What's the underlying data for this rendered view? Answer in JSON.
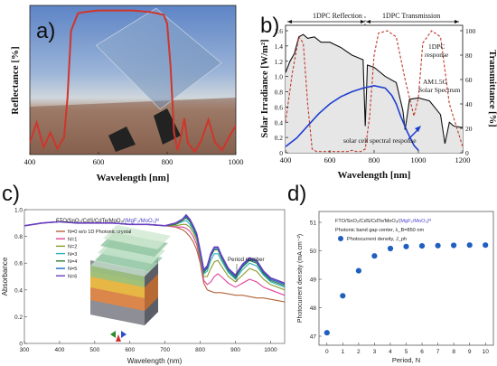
{
  "chart_data": [
    {
      "panel_label": "a)",
      "type": "line",
      "xlabel": "Wavelength [nm]",
      "ylabel": "Reflectance [%]",
      "xlim": [
        400,
        1000
      ],
      "ylim": [
        0,
        100
      ],
      "xticks": [
        "400",
        "600",
        "800",
        "1000"
      ],
      "yticks": [],
      "series": [
        {
          "color": "#d0352b",
          "x": [
            400,
            420,
            440,
            460,
            480,
            500,
            510,
            520,
            540,
            560,
            600,
            650,
            700,
            750,
            790,
            800,
            810,
            820,
            830,
            840,
            850,
            860,
            880,
            900,
            920,
            940,
            960,
            980,
            1000
          ],
          "y": [
            8,
            22,
            5,
            15,
            4,
            12,
            40,
            85,
            97,
            98,
            99,
            99,
            99,
            98,
            96,
            90,
            60,
            15,
            3,
            12,
            25,
            8,
            2,
            10,
            24,
            8,
            3,
            12,
            20
          ]
        }
      ],
      "background": "photo-of-glass-plate-over-field"
    },
    {
      "panel_label": "b)",
      "type": "line",
      "xlabel": "Wavelength [nm]",
      "ylabel": "Solar Irradiance [W/m²]",
      "y2label": "Transmittance [%]",
      "xlim": [
        400,
        1200
      ],
      "ylim": [
        0,
        1.6
      ],
      "y2lim": [
        0,
        100
      ],
      "xticks": [
        "400",
        "600",
        "800",
        "1000",
        "1200"
      ],
      "yticks": [
        "0",
        "0.2",
        "0.4",
        "0.6",
        "0.8",
        "1.0",
        "1.2",
        "1.4",
        "1.6"
      ],
      "y2ticks": [
        "0",
        "20",
        "40",
        "60",
        "80",
        "100"
      ],
      "annotations": {
        "reflection": "1DPC Reflection",
        "transmission": "1DPC Transmission",
        "dpc_response_1": "1DPC",
        "dpc_response_2": "response",
        "am15_1": "AM1.5G",
        "am15_2": "Solar Spectrum",
        "cell_response": "solar cell spectral response"
      },
      "series": [
        {
          "name_shown": "AM1.5G Solar Spectrum",
          "color": "#111111",
          "axis": "left",
          "x": [
            400,
            420,
            440,
            460,
            480,
            500,
            530,
            560,
            600,
            650,
            700,
            750,
            760,
            770,
            800,
            850,
            900,
            930,
            940,
            960,
            1000,
            1050,
            1100,
            1120,
            1140,
            1160,
            1200
          ],
          "y": [
            1.05,
            1.2,
            1.3,
            1.52,
            1.55,
            1.5,
            1.52,
            1.45,
            1.45,
            1.38,
            1.28,
            1.22,
            0.35,
            1.15,
            1.12,
            1.0,
            0.92,
            0.55,
            0.3,
            0.7,
            0.72,
            0.68,
            0.5,
            0.12,
            0.4,
            0.35,
            0.33
          ]
        },
        {
          "name_shown": "1DPC response",
          "color": "#c0392b",
          "style": "dashed",
          "axis": "right",
          "x": [
            400,
            430,
            460,
            480,
            500,
            520,
            540,
            560,
            580,
            600,
            620,
            640,
            660,
            680,
            700,
            720,
            740,
            760,
            780,
            800,
            820,
            860,
            900,
            940,
            980,
            1000,
            1020,
            1060,
            1100,
            1140,
            1200
          ],
          "y": [
            25,
            65,
            95,
            90,
            40,
            3,
            1,
            1,
            1,
            1,
            1,
            1,
            1,
            1,
            2,
            1,
            1,
            3,
            30,
            80,
            98,
            100,
            95,
            60,
            30,
            45,
            90,
            100,
            95,
            40,
            5
          ]
        },
        {
          "name_shown": "solar cell spectral response",
          "color": "#1f3ed0",
          "axis": "right",
          "x": [
            400,
            450,
            500,
            550,
            600,
            650,
            700,
            750,
            800,
            850,
            880,
            900,
            920,
            950,
            980,
            1000
          ],
          "y": [
            5,
            12,
            22,
            32,
            40,
            46,
            50,
            53,
            55,
            53,
            47,
            40,
            30,
            17,
            6,
            2
          ]
        }
      ]
    },
    {
      "panel_label": "c)",
      "type": "line",
      "xlabel": "Wavelength (nm)",
      "ylabel": "Absorbance",
      "xlim": [
        300,
        1040
      ],
      "ylim": [
        0,
        1.0
      ],
      "xticks": [
        "300",
        "400",
        "500",
        "600",
        "700",
        "800",
        "900",
        "1000"
      ],
      "yticks": [
        "0",
        "0.2",
        "0.4",
        "0.6",
        "0.8",
        "1.0"
      ],
      "structure_label_prefix": "FTO/SnO₂/CdS/CdTe/MoO₃/",
      "structure_label_pc": "(MgF₂/MoO₃)ᴺ",
      "annotation": "Period number",
      "x": [
        300,
        350,
        400,
        450,
        500,
        550,
        600,
        650,
        700,
        730,
        750,
        760,
        770,
        780,
        790,
        800,
        810,
        820,
        830,
        840,
        850,
        860,
        880,
        900,
        920,
        940,
        960,
        980,
        1000,
        1020,
        1040
      ],
      "series": [
        {
          "name": "N=0 w/o 1D Photonic crystal",
          "color": "#b5623a",
          "y": [
            0.88,
            0.9,
            0.91,
            0.9,
            0.9,
            0.9,
            0.89,
            0.89,
            0.88,
            0.87,
            0.85,
            0.83,
            0.8,
            0.76,
            0.7,
            0.6,
            0.45,
            0.4,
            0.39,
            0.38,
            0.38,
            0.38,
            0.37,
            0.36,
            0.36,
            0.35,
            0.34,
            0.34,
            0.33,
            0.32,
            0.31
          ]
        },
        {
          "name": "N=1",
          "color": "#e0409a",
          "y": [
            0.88,
            0.9,
            0.91,
            0.9,
            0.9,
            0.9,
            0.89,
            0.89,
            0.88,
            0.87,
            0.87,
            0.86,
            0.84,
            0.8,
            0.74,
            0.62,
            0.47,
            0.44,
            0.46,
            0.5,
            0.52,
            0.5,
            0.45,
            0.42,
            0.45,
            0.48,
            0.46,
            0.42,
            0.4,
            0.38,
            0.36
          ]
        },
        {
          "name": "N=2",
          "color": "#8a9a2a",
          "y": [
            0.88,
            0.9,
            0.91,
            0.9,
            0.9,
            0.9,
            0.89,
            0.89,
            0.88,
            0.88,
            0.89,
            0.89,
            0.87,
            0.83,
            0.77,
            0.64,
            0.5,
            0.5,
            0.56,
            0.61,
            0.62,
            0.58,
            0.5,
            0.46,
            0.51,
            0.56,
            0.54,
            0.48,
            0.44,
            0.42,
            0.4
          ]
        },
        {
          "name": "N=3",
          "color": "#2fb3c0",
          "y": [
            0.88,
            0.9,
            0.91,
            0.9,
            0.9,
            0.9,
            0.89,
            0.89,
            0.88,
            0.89,
            0.91,
            0.92,
            0.89,
            0.85,
            0.79,
            0.66,
            0.52,
            0.54,
            0.62,
            0.67,
            0.67,
            0.62,
            0.53,
            0.48,
            0.55,
            0.6,
            0.58,
            0.51,
            0.46,
            0.44,
            0.42
          ]
        },
        {
          "name": "N=4",
          "color": "#2e7d32",
          "y": [
            0.88,
            0.9,
            0.91,
            0.9,
            0.9,
            0.9,
            0.89,
            0.89,
            0.88,
            0.89,
            0.92,
            0.94,
            0.91,
            0.86,
            0.8,
            0.67,
            0.53,
            0.56,
            0.65,
            0.7,
            0.7,
            0.64,
            0.54,
            0.49,
            0.57,
            0.62,
            0.6,
            0.52,
            0.47,
            0.45,
            0.43
          ]
        },
        {
          "name": "N=5",
          "color": "#1565c0",
          "y": [
            0.88,
            0.9,
            0.91,
            0.9,
            0.9,
            0.9,
            0.89,
            0.89,
            0.88,
            0.9,
            0.93,
            0.95,
            0.92,
            0.87,
            0.81,
            0.68,
            0.54,
            0.57,
            0.66,
            0.71,
            0.71,
            0.65,
            0.55,
            0.5,
            0.58,
            0.63,
            0.61,
            0.53,
            0.48,
            0.46,
            0.44
          ]
        },
        {
          "name": "N=6",
          "color": "#6a3fc1",
          "y": [
            0.88,
            0.9,
            0.91,
            0.9,
            0.9,
            0.9,
            0.89,
            0.89,
            0.88,
            0.9,
            0.93,
            0.96,
            0.93,
            0.88,
            0.82,
            0.69,
            0.55,
            0.58,
            0.67,
            0.72,
            0.72,
            0.66,
            0.56,
            0.51,
            0.59,
            0.64,
            0.62,
            0.54,
            0.49,
            0.47,
            0.45
          ]
        }
      ]
    },
    {
      "panel_label": "d)",
      "type": "scatter",
      "xlabel": "Period, N",
      "ylabel": "Photocurrent density (mA cm⁻²)",
      "xlim": [
        -0.5,
        10.5
      ],
      "ylim": [
        47,
        51
      ],
      "xticks": [
        "0",
        "1",
        "2",
        "3",
        "4",
        "5",
        "6",
        "7",
        "8",
        "9",
        "10"
      ],
      "yticks": [
        "47",
        "48",
        "49",
        "50",
        "51"
      ],
      "structure_label_prefix": "FTO/SnO₂/CdS/CdTe/MoO₃/",
      "structure_label_pc": "(MgF₂/MoO₃)ᴺ",
      "subtitle": "Photonic band gap center, λ_B=850 nm",
      "legend": "Photocurrent density, J_ph",
      "legend_position": "top-left",
      "marker_color": "#1f5fbf",
      "x": [
        0,
        1,
        2,
        3,
        4,
        5,
        6,
        7,
        8,
        9,
        10
      ],
      "y": [
        47.12,
        48.42,
        49.3,
        49.82,
        50.08,
        50.15,
        50.17,
        50.18,
        50.19,
        50.2,
        50.2
      ]
    }
  ]
}
